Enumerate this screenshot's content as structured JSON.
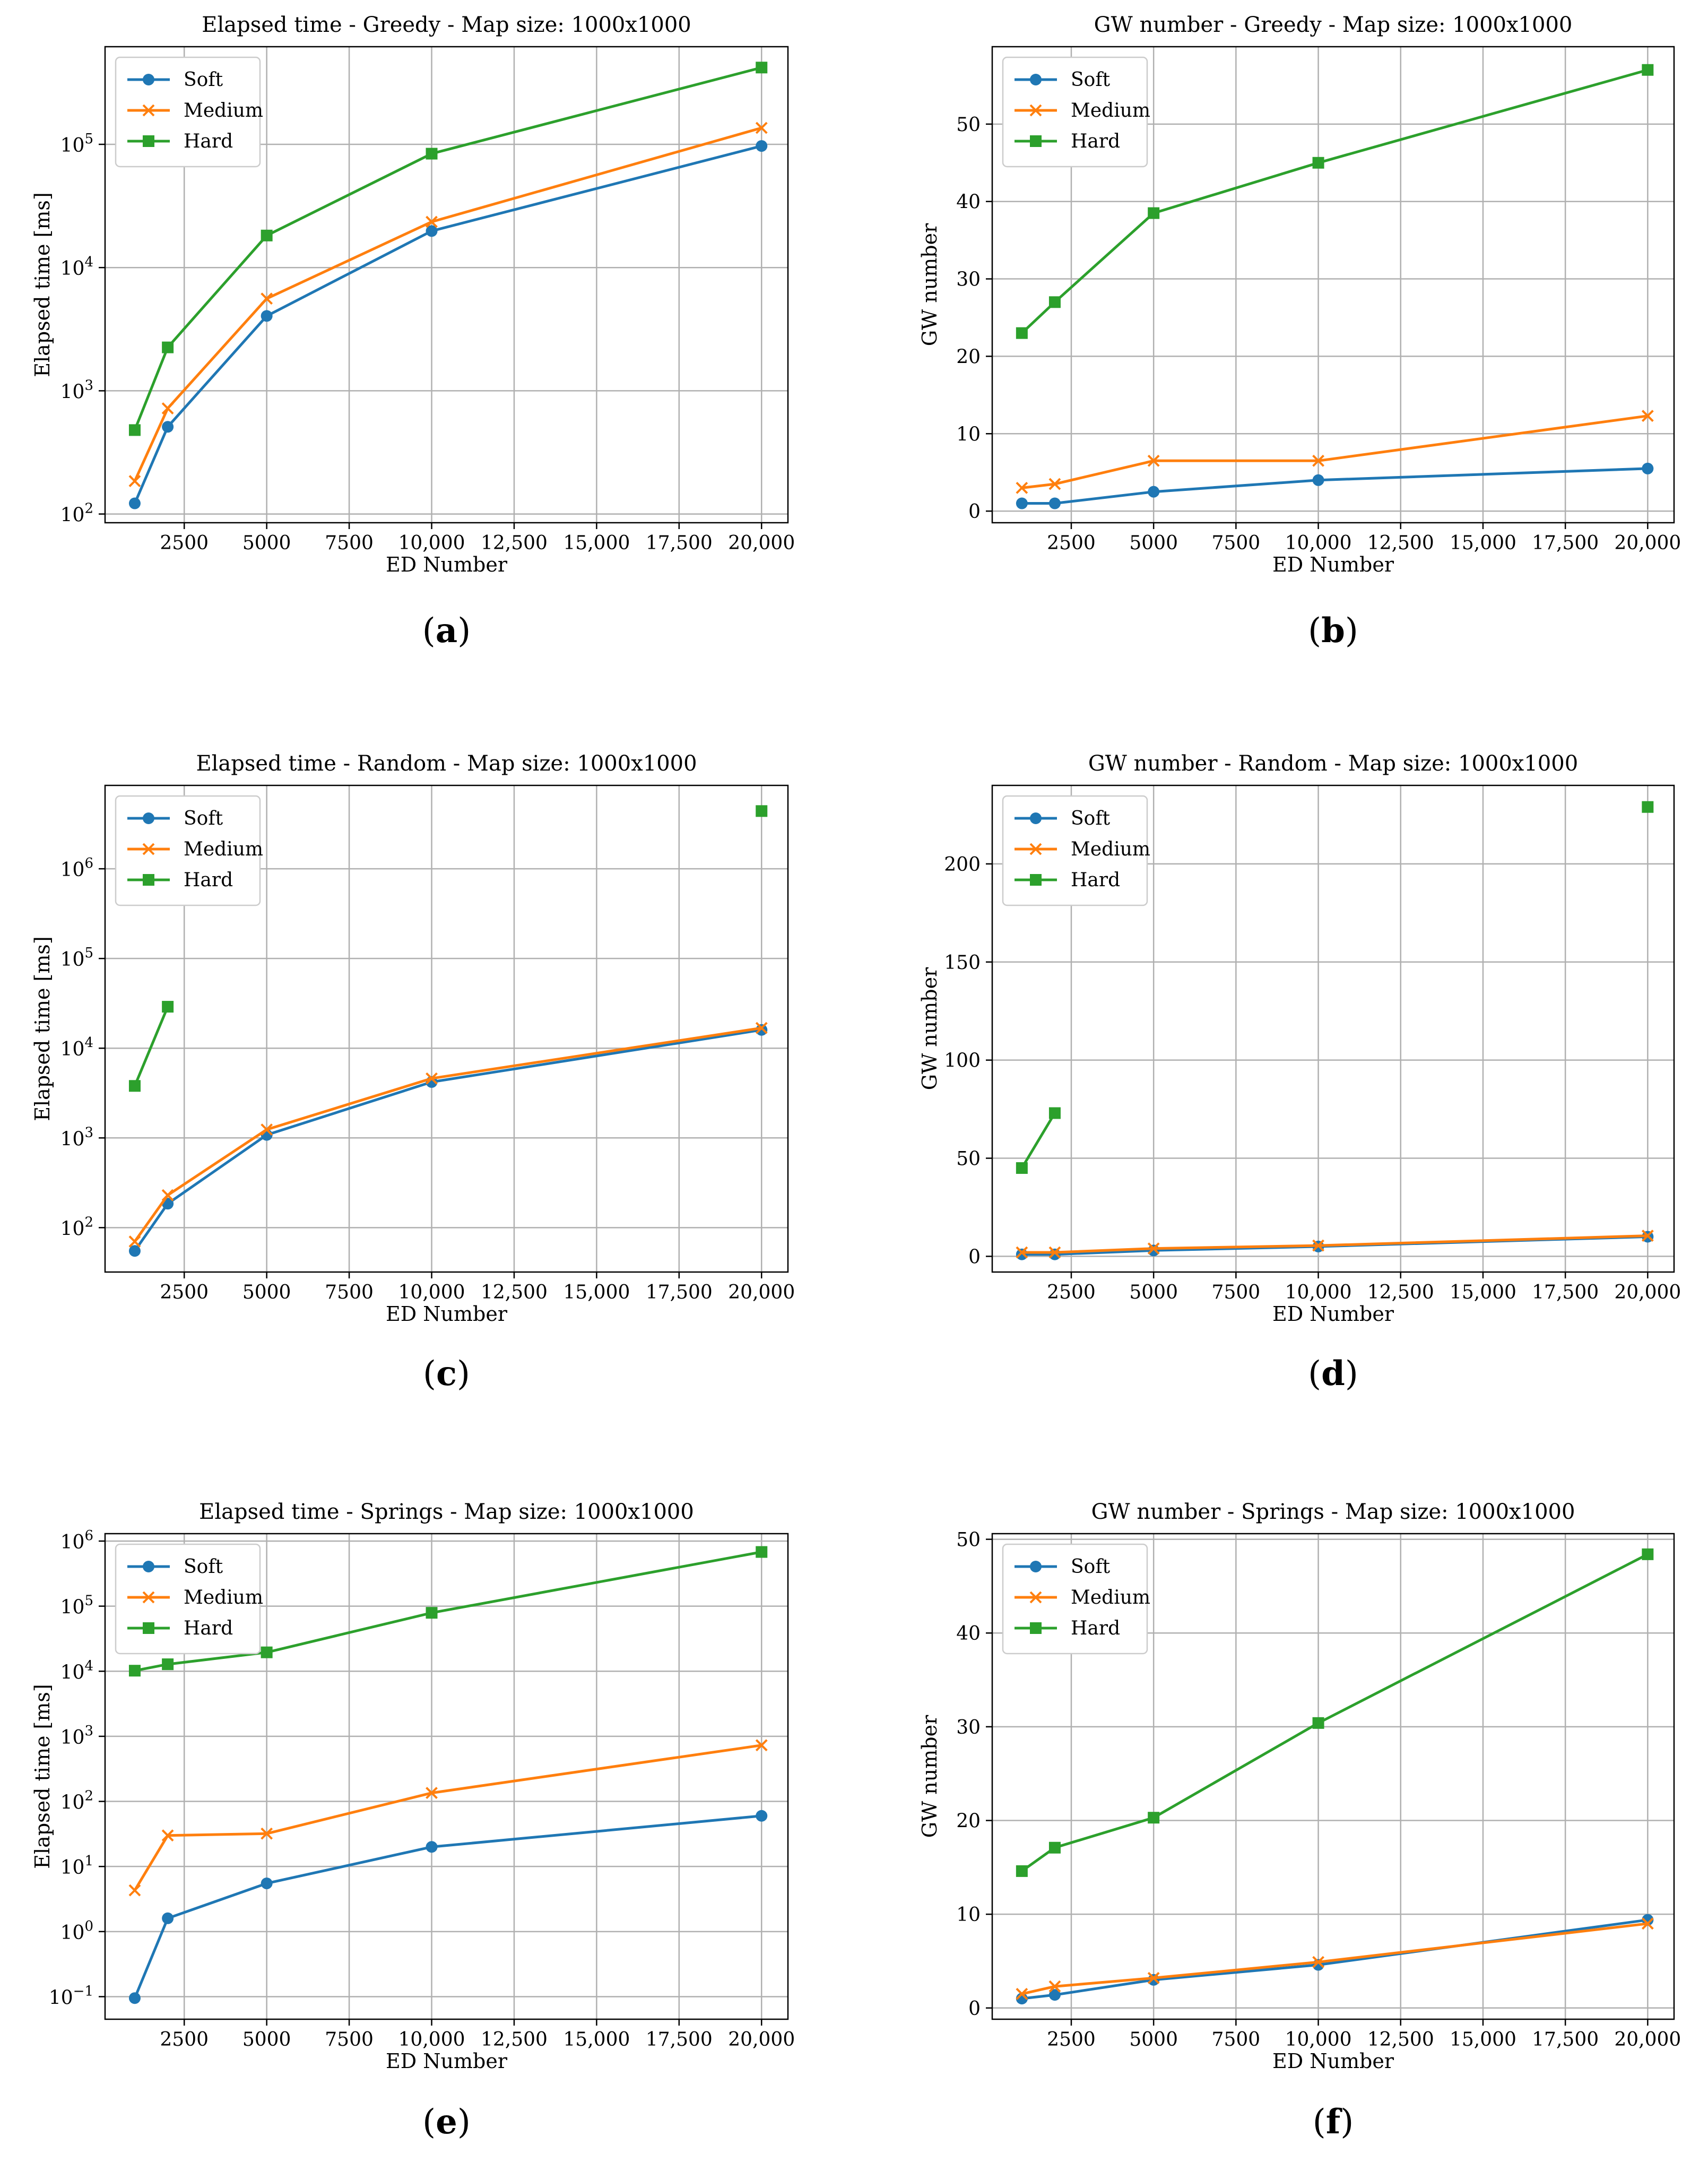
{
  "colors": {
    "soft": "#1f77b4",
    "medium": "#ff7f0e",
    "hard": "#2ca02c"
  },
  "chart_data": [
    {
      "id": "a",
      "type": "line",
      "caption": "a",
      "title": "Elapsed time - Greedy - Map size: 1000x1000",
      "xlabel": "ED Number",
      "ylabel": "Elapsed time [ms]",
      "yscale": "log",
      "xlim": [
        100,
        20800
      ],
      "ylim": [
        85,
        620000
      ],
      "xticks": [
        2500,
        5000,
        7500,
        10000,
        12500,
        15000,
        17500,
        20000
      ],
      "xtick_labels": [
        "2500",
        "5000",
        "7500",
        "10,000",
        "12,500",
        "15,000",
        "17,500",
        "20,000"
      ],
      "yticks": [
        100,
        1000,
        10000,
        100000
      ],
      "ytick_exponents": [
        "2",
        "3",
        "4",
        "5"
      ],
      "legend": "top-left",
      "series": [
        {
          "name": "Soft",
          "x": [
            1000,
            2000,
            5000,
            10000,
            20000
          ],
          "y": [
            122,
            510,
            4050,
            19800,
            97000
          ]
        },
        {
          "name": "Medium",
          "x": [
            1000,
            2000,
            5000,
            10000,
            20000
          ],
          "y": [
            185,
            720,
            5600,
            23500,
            136000
          ]
        },
        {
          "name": "Hard",
          "x": [
            1000,
            2000,
            5000,
            10000,
            20000
          ],
          "y": [
            480,
            2250,
            18200,
            84000,
            420000
          ]
        }
      ]
    },
    {
      "id": "b",
      "type": "line",
      "caption": "b",
      "title": "GW number - Greedy - Map size: 1000x1000",
      "xlabel": "ED Number",
      "ylabel": "GW number",
      "yscale": "linear",
      "xlim": [
        100,
        20800
      ],
      "ylim": [
        -1.5,
        60
      ],
      "xticks": [
        2500,
        5000,
        7500,
        10000,
        12500,
        15000,
        17500,
        20000
      ],
      "xtick_labels": [
        "2500",
        "5000",
        "7500",
        "10,000",
        "12,500",
        "15,000",
        "17,500",
        "20,000"
      ],
      "yticks": [
        0,
        10,
        20,
        30,
        40,
        50
      ],
      "ytick_labels": [
        "0",
        "10",
        "20",
        "30",
        "40",
        "50"
      ],
      "legend": "top-left",
      "series": [
        {
          "name": "Soft",
          "x": [
            1000,
            2000,
            5000,
            10000,
            20000
          ],
          "y": [
            1,
            1,
            2.5,
            4,
            5.5
          ]
        },
        {
          "name": "Medium",
          "x": [
            1000,
            2000,
            5000,
            10000,
            20000
          ],
          "y": [
            3,
            3.5,
            6.5,
            6.5,
            12.3
          ]
        },
        {
          "name": "Hard",
          "x": [
            1000,
            2000,
            5000,
            10000,
            20000
          ],
          "y": [
            23,
            27,
            38.5,
            45,
            57
          ]
        }
      ]
    },
    {
      "id": "c",
      "type": "line",
      "caption": "c",
      "title": "Elapsed time - Random - Map size: 1000x1000",
      "xlabel": "ED Number",
      "ylabel": "Elapsed time [ms]",
      "yscale": "log",
      "xlim": [
        100,
        20800
      ],
      "ylim": [
        32,
        8500000
      ],
      "xticks": [
        2500,
        5000,
        7500,
        10000,
        12500,
        15000,
        17500,
        20000
      ],
      "xtick_labels": [
        "2500",
        "5000",
        "7500",
        "10,000",
        "12,500",
        "15,000",
        "17,500",
        "20,000"
      ],
      "yticks": [
        100,
        1000,
        10000,
        100000,
        1000000
      ],
      "ytick_exponents": [
        "2",
        "3",
        "4",
        "5",
        "6"
      ],
      "legend": "top-left",
      "series": [
        {
          "name": "Soft",
          "x": [
            1000,
            2000,
            5000,
            10000,
            20000
          ],
          "y": [
            55,
            185,
            1080,
            4200,
            16000
          ]
        },
        {
          "name": "Medium",
          "x": [
            1000,
            2000,
            5000,
            10000,
            20000
          ],
          "y": [
            70,
            230,
            1240,
            4600,
            16800
          ]
        },
        {
          "name": "Hard",
          "x": [
            1000,
            2000,
            20000
          ],
          "y": [
            3800,
            29000,
            4400000
          ],
          "segments": [
            [
              0,
              1
            ],
            [
              2
            ]
          ]
        }
      ]
    },
    {
      "id": "d",
      "type": "line",
      "caption": "d",
      "title": "GW number - Random - Map size: 1000x1000",
      "xlabel": "ED Number",
      "ylabel": "GW number",
      "yscale": "linear",
      "xlim": [
        100,
        20800
      ],
      "ylim": [
        -8,
        240
      ],
      "xticks": [
        2500,
        5000,
        7500,
        10000,
        12500,
        15000,
        17500,
        20000
      ],
      "xtick_labels": [
        "2500",
        "5000",
        "7500",
        "10,000",
        "12,500",
        "15,000",
        "17,500",
        "20,000"
      ],
      "yticks": [
        0,
        50,
        100,
        150,
        200
      ],
      "ytick_labels": [
        "0",
        "50",
        "100",
        "150",
        "200"
      ],
      "legend": "top-left",
      "series": [
        {
          "name": "Soft",
          "x": [
            1000,
            2000,
            5000,
            10000,
            20000
          ],
          "y": [
            1,
            1,
            3,
            5,
            10
          ]
        },
        {
          "name": "Medium",
          "x": [
            1000,
            2000,
            5000,
            10000,
            20000
          ],
          "y": [
            2,
            2,
            4,
            5.5,
            10.5
          ]
        },
        {
          "name": "Hard",
          "x": [
            1000,
            2000,
            20000
          ],
          "y": [
            45,
            73,
            229
          ],
          "segments": [
            [
              0,
              1
            ],
            [
              2
            ]
          ]
        }
      ]
    },
    {
      "id": "e",
      "type": "line",
      "caption": "e",
      "title": "Elapsed time - Springs - Map size: 1000x1000",
      "xlabel": "ED Number",
      "ylabel": "Elapsed time [ms]",
      "yscale": "log",
      "xlim": [
        100,
        20800
      ],
      "ylim": [
        0.045,
        1300000
      ],
      "xticks": [
        2500,
        5000,
        7500,
        10000,
        12500,
        15000,
        17500,
        20000
      ],
      "xtick_labels": [
        "2500",
        "5000",
        "7500",
        "10,000",
        "12,500",
        "15,000",
        "17,500",
        "20,000"
      ],
      "yticks": [
        0.1,
        1,
        10,
        100,
        1000,
        10000,
        100000,
        1000000
      ],
      "ytick_exponents": [
        "−1",
        "0",
        "1",
        "2",
        "3",
        "4",
        "5",
        "6"
      ],
      "legend": "top-left",
      "series": [
        {
          "name": "Soft",
          "x": [
            1000,
            2000,
            5000,
            10000,
            20000
          ],
          "y": [
            0.095,
            1.6,
            5.5,
            20,
            60
          ]
        },
        {
          "name": "Medium",
          "x": [
            1000,
            2000,
            5000,
            10000,
            20000
          ],
          "y": [
            4.3,
            30,
            32,
            135,
            730
          ]
        },
        {
          "name": "Hard",
          "x": [
            1000,
            2000,
            5000,
            10000,
            20000
          ],
          "y": [
            10200,
            12800,
            19500,
            79000,
            680000
          ]
        }
      ]
    },
    {
      "id": "f",
      "type": "line",
      "caption": "f",
      "title": "GW number - Springs - Map size: 1000x1000",
      "xlabel": "ED Number",
      "ylabel": "GW number",
      "yscale": "linear",
      "xlim": [
        100,
        20800
      ],
      "ylim": [
        -1.2,
        50.6
      ],
      "xticks": [
        2500,
        5000,
        7500,
        10000,
        12500,
        15000,
        17500,
        20000
      ],
      "xtick_labels": [
        "2500",
        "5000",
        "7500",
        "10,000",
        "12,500",
        "15,000",
        "17,500",
        "20,000"
      ],
      "yticks": [
        0,
        10,
        20,
        30,
        40,
        50
      ],
      "ytick_labels": [
        "0",
        "10",
        "20",
        "30",
        "40",
        "50"
      ],
      "legend": "top-left",
      "series": [
        {
          "name": "Soft",
          "x": [
            1000,
            2000,
            5000,
            10000,
            20000
          ],
          "y": [
            1,
            1.4,
            3,
            4.6,
            9.4
          ]
        },
        {
          "name": "Medium",
          "x": [
            1000,
            2000,
            5000,
            10000,
            20000
          ],
          "y": [
            1.5,
            2.3,
            3.2,
            4.9,
            9
          ]
        },
        {
          "name": "Hard",
          "x": [
            1000,
            2000,
            5000,
            10000,
            20000
          ],
          "y": [
            14.6,
            17.1,
            20.3,
            30.4,
            48.4
          ]
        }
      ]
    }
  ]
}
